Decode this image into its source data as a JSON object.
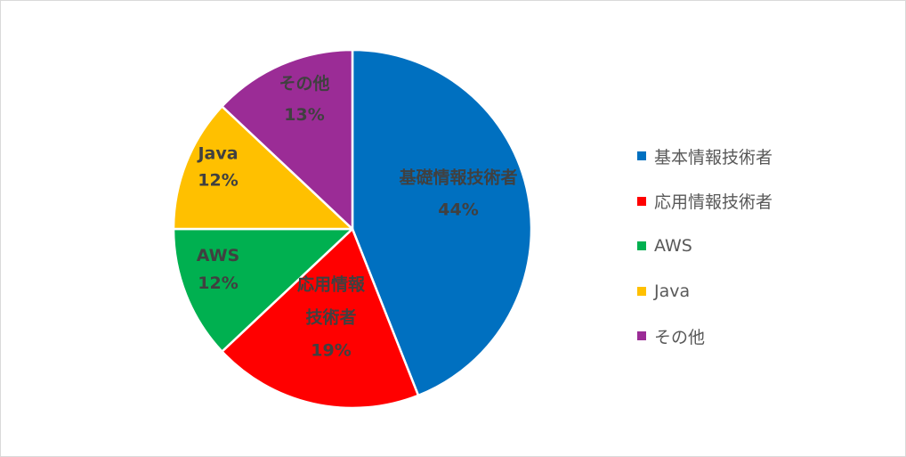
{
  "chart_data": {
    "type": "pie",
    "slices": [
      {
        "label_lines": [
          "基礎情報技術者"
        ],
        "value": 44,
        "value_label": "44%",
        "color": "#0070c0"
      },
      {
        "label_lines": [
          "応用情報",
          "技術者"
        ],
        "value": 19,
        "value_label": "19%",
        "color": "#ff0000"
      },
      {
        "label_lines": [
          "AWS"
        ],
        "value": 12,
        "value_label": "12%",
        "color": "#00b050"
      },
      {
        "label_lines": [
          "Java"
        ],
        "value": 12,
        "value_label": "12%",
        "color": "#ffc000"
      },
      {
        "label_lines": [
          "その他"
        ],
        "value": 13,
        "value_label": "13%",
        "color": "#9b2c96"
      }
    ],
    "legend": {
      "position": "right",
      "entries": [
        {
          "label": "基本情報技術者",
          "color": "#0070c0"
        },
        {
          "label": "応用情報技術者",
          "color": "#ff0000"
        },
        {
          "label": "AWS",
          "color": "#00b050"
        },
        {
          "label": "Java",
          "color": "#ffc000"
        },
        {
          "label": "その他",
          "color": "#9b2c96"
        }
      ]
    }
  }
}
